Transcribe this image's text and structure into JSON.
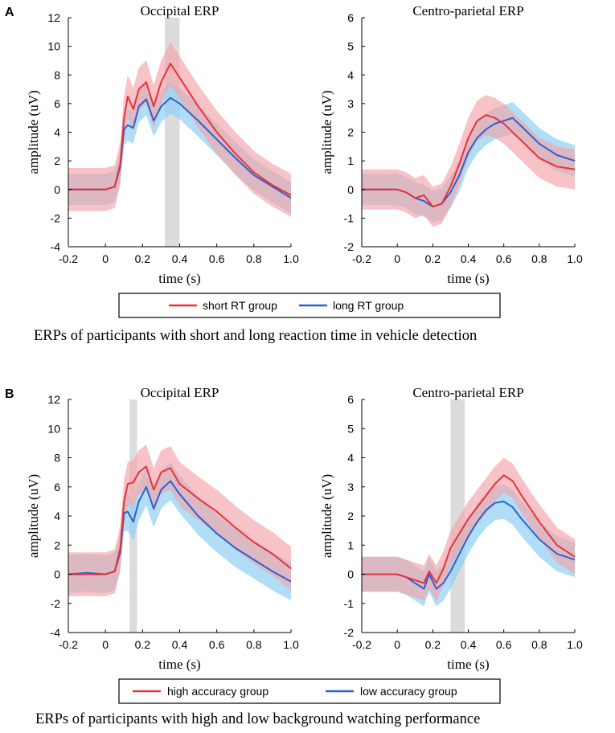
{
  "colors": {
    "red_line": "#e8323a",
    "red_band": "#f4a3a8",
    "blue_line": "#2f5fd0",
    "blue_band": "#8fd0f2",
    "highlight": "#dcdcdc"
  },
  "panels": [
    {
      "letter": "A",
      "caption": "ERPs of participants with short and long reaction time in vehicle detection",
      "legend": [
        "short RT group",
        "long RT group"
      ]
    },
    {
      "letter": "B",
      "caption": "ERPs of participants with high and low background watching performance",
      "legend": [
        "high accuracy group",
        "low accuracy group"
      ]
    }
  ],
  "chart_data": [
    {
      "type": "line",
      "title": "Occipital ERP",
      "xlabel": "time (s)",
      "ylabel": "amplitude (uV)",
      "xlim": [
        -0.2,
        1.0
      ],
      "ylim": [
        -4,
        12
      ],
      "xticks": [
        "-0.2",
        "0",
        "0.2",
        "0.4",
        "0.6",
        "0.8",
        "1.0"
      ],
      "yticks": [
        "-4",
        "-2",
        "0",
        "2",
        "4",
        "6",
        "8",
        "10",
        "12"
      ],
      "highlight": [
        0.32,
        0.4
      ],
      "x": [
        -0.2,
        -0.1,
        0,
        0.05,
        0.08,
        0.1,
        0.12,
        0.15,
        0.18,
        0.22,
        0.26,
        0.3,
        0.35,
        0.4,
        0.5,
        0.6,
        0.7,
        0.8,
        0.9,
        1.0
      ],
      "series": [
        {
          "name": "short RT group",
          "values": [
            0,
            0,
            0,
            0.2,
            1.8,
            5.0,
            6.5,
            5.6,
            7.0,
            7.5,
            5.8,
            7.5,
            8.8,
            7.8,
            5.8,
            4.0,
            2.5,
            1.2,
            0.3,
            -0.4
          ],
          "band": 1.5
        },
        {
          "name": "long RT group",
          "values": [
            0,
            0,
            0,
            0.2,
            1.6,
            4.2,
            4.5,
            4.3,
            5.8,
            6.3,
            4.8,
            5.8,
            6.4,
            6.0,
            4.8,
            3.5,
            2.2,
            1.0,
            0.2,
            -0.6
          ],
          "band": 1.1
        }
      ]
    },
    {
      "type": "line",
      "title": "Centro-parietal ERP",
      "xlabel": "time (s)",
      "ylabel": "amplitude (uV)",
      "xlim": [
        -0.2,
        1.0
      ],
      "ylim": [
        -2,
        6
      ],
      "xticks": [
        "-0.2",
        "0",
        "0.2",
        "0.4",
        "0.6",
        "0.8",
        "1.0"
      ],
      "yticks": [
        "-2",
        "-1",
        "0",
        "1",
        "2",
        "3",
        "4",
        "5",
        "6"
      ],
      "highlight": null,
      "x": [
        -0.2,
        -0.1,
        0,
        0.05,
        0.1,
        0.15,
        0.2,
        0.25,
        0.3,
        0.35,
        0.4,
        0.45,
        0.5,
        0.55,
        0.6,
        0.65,
        0.7,
        0.8,
        0.9,
        1.0
      ],
      "series": [
        {
          "name": "short RT group",
          "values": [
            0,
            0,
            0,
            -0.1,
            -0.3,
            -0.2,
            -0.6,
            -0.5,
            0.1,
            0.9,
            1.8,
            2.4,
            2.6,
            2.5,
            2.3,
            2.0,
            1.7,
            1.1,
            0.8,
            0.7
          ],
          "band": 0.7
        },
        {
          "name": "long RT group",
          "values": [
            0,
            0,
            0,
            -0.1,
            -0.3,
            -0.4,
            -0.6,
            -0.5,
            -0.1,
            0.5,
            1.3,
            1.8,
            2.1,
            2.3,
            2.4,
            2.5,
            2.2,
            1.6,
            1.2,
            1.0
          ],
          "band": 0.55
        }
      ]
    },
    {
      "type": "line",
      "title": "Occipital ERP",
      "xlabel": "time (s)",
      "ylabel": "amplitude (uV)",
      "xlim": [
        -0.2,
        1.0
      ],
      "ylim": [
        -4,
        12
      ],
      "xticks": [
        "-0.2",
        "0",
        "0.2",
        "0.4",
        "0.6",
        "0.8",
        "1.0"
      ],
      "yticks": [
        "-4",
        "-2",
        "0",
        "2",
        "4",
        "6",
        "8",
        "10",
        "12"
      ],
      "highlight": [
        0.13,
        0.17
      ],
      "x": [
        -0.2,
        -0.1,
        0,
        0.05,
        0.08,
        0.1,
        0.12,
        0.15,
        0.18,
        0.22,
        0.26,
        0.3,
        0.35,
        0.4,
        0.5,
        0.6,
        0.7,
        0.8,
        0.9,
        1.0
      ],
      "series": [
        {
          "name": "high accuracy group",
          "values": [
            0,
            0,
            0,
            0.2,
            1.8,
            5.0,
            6.2,
            6.3,
            7.0,
            7.4,
            5.8,
            7.0,
            7.3,
            6.2,
            5.2,
            4.3,
            3.2,
            2.2,
            1.4,
            0.4
          ],
          "band": 1.5
        },
        {
          "name": "low accuracy group",
          "values": [
            0,
            0.1,
            0,
            0.2,
            1.5,
            4.2,
            4.3,
            3.6,
            5.0,
            6.0,
            4.5,
            5.8,
            6.4,
            5.5,
            4.0,
            2.8,
            1.8,
            1.0,
            0.2,
            -0.5
          ],
          "band": 1.3
        }
      ]
    },
    {
      "type": "line",
      "title": "Centro-parietal ERP",
      "xlabel": "time (s)",
      "ylabel": "amplitude (uV)",
      "xlim": [
        -0.2,
        1.0
      ],
      "ylim": [
        -2,
        6
      ],
      "xticks": [
        "-0.2",
        "0",
        "0.2",
        "0.4",
        "0.6",
        "0.8",
        "1.0"
      ],
      "yticks": [
        "-2",
        "-1",
        "0",
        "1",
        "2",
        "3",
        "4",
        "5",
        "6"
      ],
      "highlight": [
        0.3,
        0.38
      ],
      "x": [
        -0.2,
        -0.1,
        0,
        0.05,
        0.1,
        0.15,
        0.18,
        0.22,
        0.26,
        0.3,
        0.35,
        0.4,
        0.45,
        0.5,
        0.55,
        0.6,
        0.65,
        0.7,
        0.8,
        0.9,
        1.0
      ],
      "series": [
        {
          "name": "high accuracy group",
          "values": [
            0,
            0,
            0,
            -0.1,
            -0.2,
            -0.3,
            0.1,
            -0.3,
            0.2,
            0.9,
            1.4,
            1.9,
            2.3,
            2.7,
            3.1,
            3.4,
            3.2,
            2.7,
            1.8,
            1.0,
            0.6
          ],
          "band": 0.6
        },
        {
          "name": "low accuracy group",
          "values": [
            0,
            0,
            0,
            -0.1,
            -0.3,
            -0.5,
            0,
            -0.5,
            -0.3,
            0.1,
            0.7,
            1.3,
            1.8,
            2.2,
            2.45,
            2.5,
            2.3,
            1.9,
            1.2,
            0.7,
            0.5
          ],
          "band": 0.6
        }
      ]
    }
  ]
}
